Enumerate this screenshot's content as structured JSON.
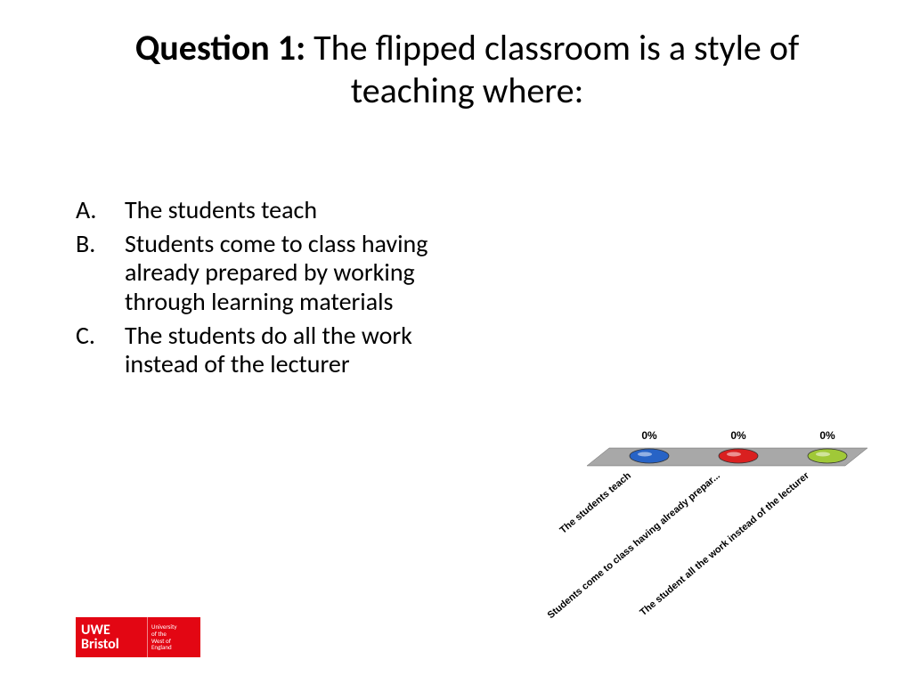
{
  "title": {
    "prefix_bold": "Question 1:",
    "rest": " The flipped classroom is a style of teaching where:"
  },
  "options": [
    {
      "letter": "A.",
      "text": "The students teach"
    },
    {
      "letter": "B.",
      "text": "Students come to class having already prepared by working through learning materials"
    },
    {
      "letter": "C.",
      "text": "The students do all the work instead of the lecturer"
    }
  ],
  "logo": {
    "line1": "UWE",
    "line2": "Bristol",
    "side1": "University",
    "side2": "of the",
    "side3": "West of",
    "side4": "England",
    "bg_color": "#e30613"
  },
  "chart": {
    "type": "bar",
    "platform_color": "#a8a8a8",
    "platform_stroke": "#666666",
    "values": [
      0,
      0,
      0
    ],
    "value_labels": [
      "0%",
      "0%",
      "0%"
    ],
    "category_labels": [
      "The students teach",
      "Students come to class having already prepar...",
      "The student all the work instead of the lecturer"
    ],
    "bar_colors": [
      "#2763c6",
      "#d92020",
      "#a0c838"
    ],
    "bar_stroke": "#333333",
    "label_fontsize": 11,
    "label_color": "#000000",
    "percent_fontsize": 12
  }
}
